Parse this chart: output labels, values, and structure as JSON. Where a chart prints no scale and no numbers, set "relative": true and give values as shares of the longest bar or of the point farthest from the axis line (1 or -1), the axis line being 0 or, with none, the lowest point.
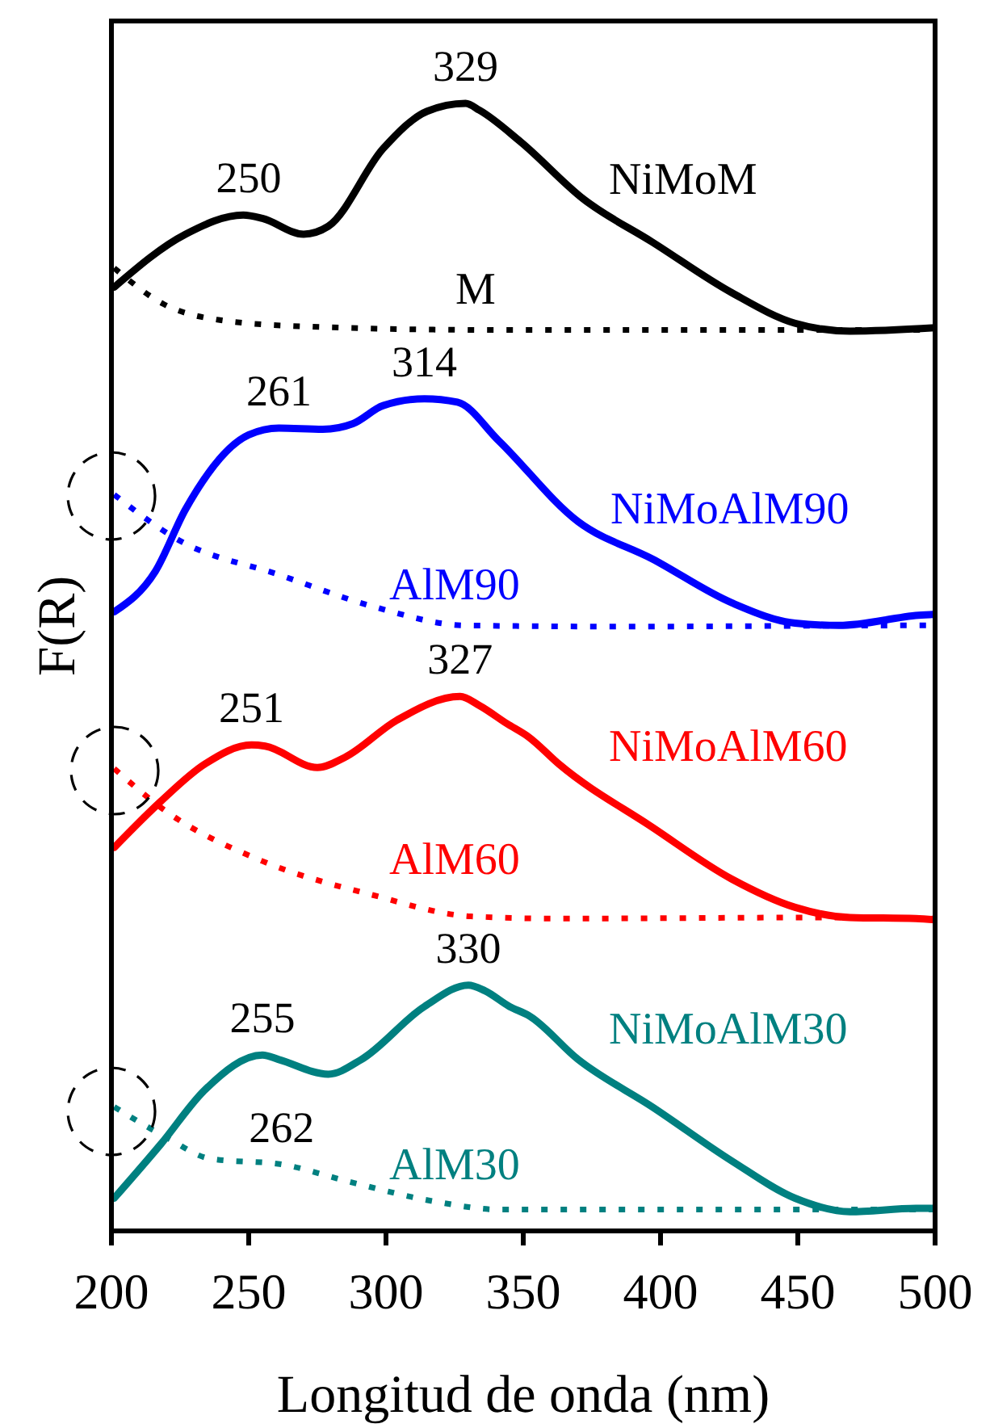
{
  "chart_data": {
    "type": "line",
    "relative": true,
    "xlabel": "Longitud de onda (nm)",
    "ylabel": "F(R)",
    "xlim": [
      200,
      500
    ],
    "xticks": [
      200,
      250,
      300,
      350,
      400,
      450,
      500
    ],
    "series": [
      {
        "name": "NiMoM",
        "color": "#000000",
        "line_style": "solid",
        "x": [
          201,
          227,
          248,
          255,
          270,
          279,
          299,
          315,
          329,
          334,
          349,
          372,
          397,
          426,
          449,
          469,
          500
        ],
        "values": [
          0.837,
          0.884,
          0.901,
          0.898,
          0.884,
          0.891,
          0.96,
          0.993,
          1.0,
          0.994,
          0.966,
          0.915,
          0.877,
          0.832,
          0.805,
          0.798,
          0.801
        ]
      },
      {
        "name": "M",
        "color": "#000000",
        "line_style": "dotted",
        "x": [
          201,
          219,
          239,
          272,
          341,
          449,
          500
        ],
        "values": [
          0.854,
          0.822,
          0.808,
          0.802,
          0.799,
          0.799,
          0.799
        ]
      },
      {
        "name": "NiMoAlM90",
        "color": "#0000ff",
        "line_style": "solid",
        "x": [
          201,
          216,
          227,
          250,
          261,
          277,
          288,
          299,
          314,
          326,
          341,
          370,
          397,
          426,
          449,
          465,
          494,
          500
        ],
        "values": [
          0.549,
          0.585,
          0.64,
          0.706,
          0.712,
          0.711,
          0.716,
          0.732,
          0.738,
          0.735,
          0.701,
          0.629,
          0.596,
          0.557,
          0.539,
          0.537,
          0.546,
          0.547
        ]
      },
      {
        "name": "AlM90",
        "color": "#0000ff",
        "line_style": "dotted",
        "x": [
          201,
          225,
          261,
          295,
          329,
          386,
          494,
          500
        ],
        "values": [
          0.653,
          0.612,
          0.582,
          0.554,
          0.537,
          0.536,
          0.537,
          0.537
        ]
      },
      {
        "name": "NiMoAlM60",
        "color": "#ff0000",
        "line_style": "solid",
        "x": [
          201,
          218,
          234,
          251,
          256,
          275,
          285,
          304,
          327,
          334,
          344,
          352,
          363,
          397,
          426,
          449,
          469,
          493,
          500
        ],
        "values": [
          0.34,
          0.381,
          0.414,
          0.431,
          0.43,
          0.411,
          0.42,
          0.453,
          0.474,
          0.466,
          0.45,
          0.438,
          0.414,
          0.358,
          0.312,
          0.287,
          0.278,
          0.277,
          0.276
        ]
      },
      {
        "name": "AlM60",
        "color": "#ff0000",
        "line_style": "dotted",
        "x": [
          201,
          220,
          255,
          295,
          331,
          363,
          461,
          500
        ],
        "values": [
          0.41,
          0.372,
          0.328,
          0.298,
          0.279,
          0.277,
          0.278,
          0.277
        ]
      },
      {
        "name": "NiMoAlM30",
        "color": "#008080",
        "line_style": "solid",
        "x": [
          201,
          218,
          234,
          255,
          261,
          279,
          291,
          314,
          330,
          336,
          345,
          352,
          370,
          397,
          426,
          449,
          469,
          493,
          500
        ],
        "values": [
          0.029,
          0.077,
          0.125,
          0.156,
          0.152,
          0.139,
          0.152,
          0.199,
          0.218,
          0.213,
          0.199,
          0.191,
          0.152,
          0.11,
          0.062,
          0.029,
          0.017,
          0.02,
          0.02
        ]
      },
      {
        "name": "AlM30",
        "color": "#008080",
        "line_style": "dotted",
        "x": [
          201,
          220,
          236,
          262,
          286,
          318,
          341,
          454,
          500
        ],
        "values": [
          0.11,
          0.083,
          0.064,
          0.059,
          0.044,
          0.026,
          0.019,
          0.019,
          0.019
        ]
      }
    ],
    "annotations": [
      {
        "text": "250",
        "x": 250,
        "y": 0.901
      },
      {
        "text": "329",
        "x": 329,
        "y": 1.0
      },
      {
        "text": "261",
        "x": 261,
        "y": 0.712
      },
      {
        "text": "314",
        "x": 314,
        "y": 0.738
      },
      {
        "text": "251",
        "x": 251,
        "y": 0.431
      },
      {
        "text": "327",
        "x": 327,
        "y": 0.474
      },
      {
        "text": "255",
        "x": 255,
        "y": 0.156
      },
      {
        "text": "330",
        "x": 330,
        "y": 0.218
      },
      {
        "text": "262",
        "x": 262,
        "y": 0.059
      }
    ]
  }
}
